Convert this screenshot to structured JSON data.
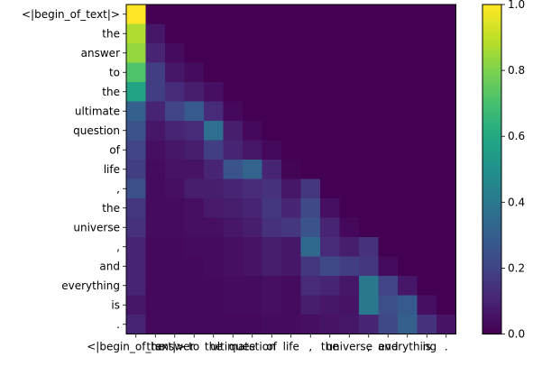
{
  "chart_data": {
    "type": "heatmap",
    "title": "",
    "xlabel": "",
    "ylabel": "",
    "x_labels": [
      "<|begin_of_text|>",
      "the",
      "answer",
      "to",
      "the",
      "ultimate",
      "question",
      "of",
      "life",
      ",",
      "the",
      "universe",
      ",",
      "and",
      "everything",
      "is",
      "."
    ],
    "y_labels": [
      "<|begin_of_text|>",
      "the",
      "answer",
      "to",
      "the",
      "ultimate",
      "question",
      "of",
      "life",
      ",",
      "the",
      "universe",
      ",",
      "and",
      "everything",
      "is",
      "."
    ],
    "values": [
      [
        1.0,
        0,
        0,
        0,
        0,
        0,
        0,
        0,
        0,
        0,
        0,
        0,
        0,
        0,
        0,
        0,
        0
      ],
      [
        0.88,
        0.06,
        0,
        0,
        0,
        0,
        0,
        0,
        0,
        0,
        0,
        0,
        0,
        0,
        0,
        0,
        0
      ],
      [
        0.84,
        0.1,
        0.03,
        0,
        0,
        0,
        0,
        0,
        0,
        0,
        0,
        0,
        0,
        0,
        0,
        0,
        0
      ],
      [
        0.72,
        0.18,
        0.06,
        0.03,
        0,
        0,
        0,
        0,
        0,
        0,
        0,
        0,
        0,
        0,
        0,
        0,
        0
      ],
      [
        0.58,
        0.18,
        0.12,
        0.08,
        0.04,
        0,
        0,
        0,
        0,
        0,
        0,
        0,
        0,
        0,
        0,
        0,
        0
      ],
      [
        0.3,
        0.1,
        0.2,
        0.28,
        0.12,
        0.02,
        0,
        0,
        0,
        0,
        0,
        0,
        0,
        0,
        0,
        0,
        0
      ],
      [
        0.26,
        0.06,
        0.1,
        0.12,
        0.36,
        0.08,
        0.02,
        0,
        0,
        0,
        0,
        0,
        0,
        0,
        0,
        0,
        0
      ],
      [
        0.2,
        0.04,
        0.06,
        0.08,
        0.18,
        0.1,
        0.06,
        0.02,
        0,
        0,
        0,
        0,
        0,
        0,
        0,
        0,
        0
      ],
      [
        0.18,
        0.03,
        0.05,
        0.05,
        0.1,
        0.26,
        0.32,
        0.1,
        0.01,
        0,
        0,
        0,
        0,
        0,
        0,
        0,
        0
      ],
      [
        0.24,
        0.03,
        0.04,
        0.08,
        0.08,
        0.1,
        0.12,
        0.14,
        0.06,
        0.16,
        0,
        0,
        0,
        0,
        0,
        0,
        0
      ],
      [
        0.16,
        0.03,
        0.03,
        0.04,
        0.07,
        0.08,
        0.1,
        0.16,
        0.1,
        0.22,
        0.04,
        0,
        0,
        0,
        0,
        0,
        0
      ],
      [
        0.14,
        0.03,
        0.03,
        0.04,
        0.04,
        0.06,
        0.08,
        0.14,
        0.16,
        0.26,
        0.1,
        0.02,
        0,
        0,
        0,
        0,
        0
      ],
      [
        0.1,
        0.02,
        0.02,
        0.03,
        0.03,
        0.04,
        0.05,
        0.08,
        0.06,
        0.34,
        0.12,
        0.08,
        0.14,
        0,
        0,
        0,
        0
      ],
      [
        0.1,
        0.02,
        0.02,
        0.02,
        0.03,
        0.04,
        0.05,
        0.08,
        0.06,
        0.16,
        0.22,
        0.18,
        0.16,
        0.03,
        0,
        0,
        0
      ],
      [
        0.1,
        0.02,
        0.02,
        0.02,
        0.02,
        0.03,
        0.03,
        0.04,
        0.03,
        0.12,
        0.1,
        0.06,
        0.4,
        0.2,
        0.06,
        0,
        0
      ],
      [
        0.06,
        0.02,
        0.02,
        0.02,
        0.02,
        0.03,
        0.03,
        0.04,
        0.03,
        0.08,
        0.06,
        0.05,
        0.4,
        0.24,
        0.28,
        0.04,
        0
      ],
      [
        0.1,
        0.02,
        0.02,
        0.02,
        0.02,
        0.02,
        0.02,
        0.03,
        0.03,
        0.04,
        0.05,
        0.06,
        0.1,
        0.22,
        0.3,
        0.14,
        0.05
      ]
    ],
    "colorbar": {
      "ticks": [
        "0.0",
        "0.2",
        "0.4",
        "0.6",
        "0.8",
        "1.0"
      ],
      "range": [
        0,
        1
      ]
    },
    "colormap": "viridis"
  }
}
